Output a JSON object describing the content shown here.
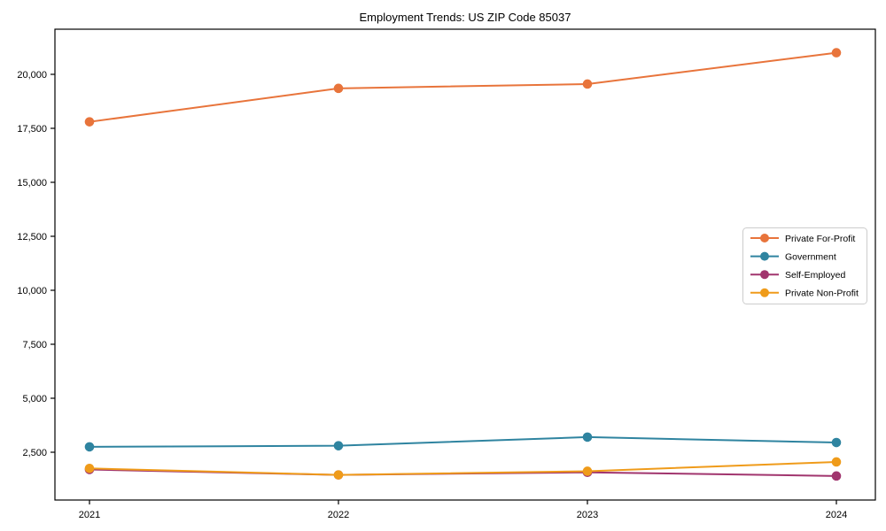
{
  "chart_data": {
    "type": "line",
    "title": "Employment Trends: US ZIP Code 85037",
    "xlabel": "",
    "ylabel": "",
    "categories": [
      "2021",
      "2022",
      "2023",
      "2024"
    ],
    "series": [
      {
        "name": "Private For-Profit",
        "color": "#e8743b",
        "values": [
          17800,
          19350,
          19550,
          21000
        ]
      },
      {
        "name": "Government",
        "color": "#2f84a0",
        "values": [
          2750,
          2800,
          3200,
          2950
        ]
      },
      {
        "name": "Self-Employed",
        "color": "#a1356e",
        "values": [
          1700,
          1450,
          1570,
          1400
        ]
      },
      {
        "name": "Private Non-Profit",
        "color": "#ef9b1a",
        "values": [
          1750,
          1450,
          1620,
          2050
        ]
      }
    ],
    "y_ticks": [
      2500,
      5000,
      7500,
      10000,
      12500,
      15000,
      17500,
      20000
    ],
    "y_tick_labels": [
      "2,500",
      "5,000",
      "7,500",
      "10,000",
      "12,500",
      "15,000",
      "17,500",
      "20,000"
    ],
    "ylim": [
      300,
      22100
    ],
    "grid": false,
    "legend_position": "center-right",
    "marker": "circle",
    "axis_color": "#000000"
  }
}
